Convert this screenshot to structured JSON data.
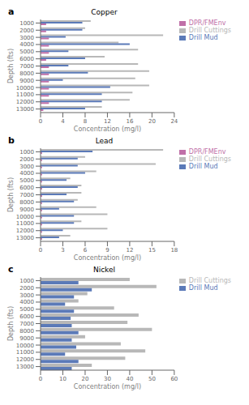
{
  "chart_data": [
    {
      "type": "bar",
      "orientation": "horizontal",
      "title": "Copper",
      "annotations": [
        "a"
      ],
      "x_label": "Concentration (mg/l)",
      "y_label": "Depth (fts)",
      "categories": [
        1000,
        2000,
        3000,
        4000,
        5000,
        6000,
        7000,
        8000,
        9000,
        10000,
        11000,
        12000,
        13000
      ],
      "series": [
        {
          "name": "Drill Cuttings",
          "color": "#b8b8b8",
          "values": [
            9.0,
            8.0,
            22.0,
            14.0,
            17.5,
            11.5,
            17.5,
            19.5,
            17.0,
            19.5,
            16.5,
            16.0,
            11.0
          ]
        },
        {
          "name": "Drill Mud",
          "color": "#5b7ab8",
          "values": [
            7.5,
            7.5,
            4.5,
            16.0,
            5.0,
            8.0,
            5.0,
            8.5,
            4.0,
            12.5,
            11.0,
            11.0,
            8.0
          ]
        },
        {
          "name": "DPR/FMEnv",
          "color": "#c070a8",
          "values": [
            1.0,
            1.0,
            1.5,
            1.5,
            1.5,
            1.0,
            1.5,
            1.5,
            1.5,
            1.5,
            1.5,
            1.5,
            0.5
          ]
        }
      ],
      "xlim": [
        0,
        24
      ],
      "xticks": [
        0,
        4,
        8,
        12,
        16,
        20,
        24
      ],
      "grid": false,
      "legend": "right"
    },
    {
      "type": "bar",
      "orientation": "horizontal",
      "title": "Lead",
      "annotations": [
        "b"
      ],
      "x_label": "Concentration (mg/l)",
      "y_label": "Depth (fts)",
      "categories": [
        1000,
        2000,
        3000,
        4000,
        5000,
        6000,
        7000,
        8000,
        9000,
        10000,
        11000,
        12000,
        13000
      ],
      "series": [
        {
          "name": "Drill Cuttings",
          "color": "#b8b8b8",
          "values": [
            16.5,
            6.0,
            15.5,
            7.5,
            4.0,
            5.5,
            5.5,
            5.0,
            7.5,
            9.0,
            5.5,
            9.0,
            4.0
          ]
        },
        {
          "name": "Drill Mud",
          "color": "#5b7ab8",
          "values": [
            7.0,
            5.0,
            5.0,
            6.0,
            3.5,
            5.0,
            3.5,
            4.5,
            2.5,
            4.5,
            4.5,
            3.0,
            2.5
          ]
        },
        {
          "name": "DPR/FMEnv",
          "color": "#c070a8",
          "values": [
            0.2,
            0.2,
            0.2,
            0.2,
            0.2,
            0.2,
            0.2,
            0.2,
            0.2,
            0.2,
            0.2,
            0.2,
            0.2
          ]
        }
      ],
      "xlim": [
        0,
        18
      ],
      "xticks": [
        0,
        3,
        6,
        9,
        12,
        15,
        18
      ],
      "grid": false,
      "legend": "right"
    },
    {
      "type": "bar",
      "orientation": "horizontal",
      "title": "Nickel",
      "annotations": [
        "c"
      ],
      "x_label": "Concentration (mg/l)",
      "y_label": "Depth (fts)",
      "categories": [
        1000,
        2000,
        3000,
        4000,
        5000,
        6000,
        7000,
        8000,
        9000,
        10000,
        11000,
        12000,
        13000
      ],
      "series": [
        {
          "name": "Drill Cuttings",
          "color": "#b8b8b8",
          "values": [
            40.0,
            52.0,
            21.0,
            17.0,
            33.0,
            44.0,
            39.0,
            50.0,
            20.0,
            36.0,
            47.0,
            38.0,
            23.0
          ]
        },
        {
          "name": "Drill Mud",
          "color": "#5b7ab8",
          "values": [
            17.0,
            23.0,
            15.0,
            11.0,
            15.0,
            13.5,
            14.0,
            17.0,
            14.0,
            16.0,
            11.0,
            17.0,
            14.0
          ]
        }
      ],
      "xlim": [
        0,
        60
      ],
      "xticks": [
        0,
        10,
        20,
        30,
        40,
        50,
        60
      ],
      "grid": false,
      "legend": "right"
    }
  ]
}
